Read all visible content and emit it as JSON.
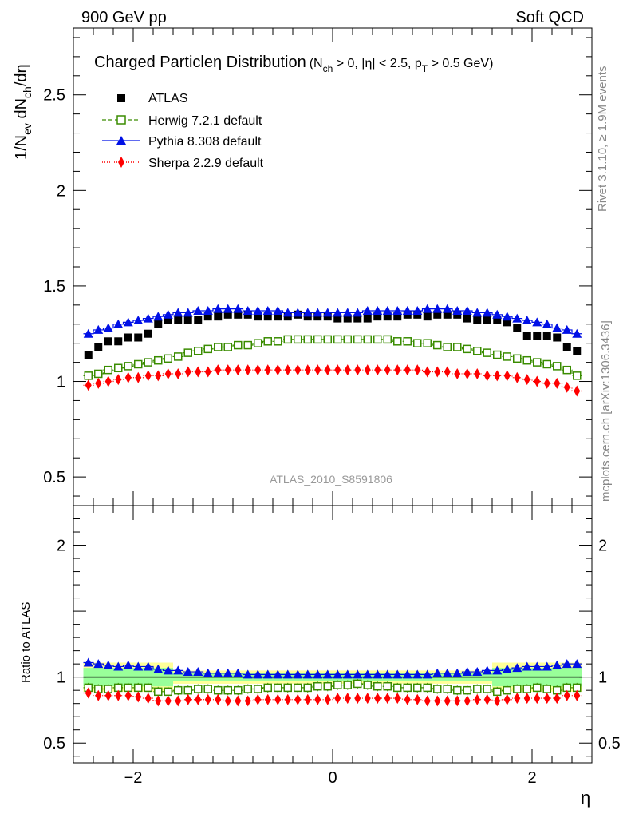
{
  "header": {
    "left": "900 GeV pp",
    "right": "Soft QCD"
  },
  "side_text": {
    "rivet": "Rivet 3.1.10, ≥ 1.9M events",
    "mcplots": "mcplots.cern.ch [arXiv:1306.3436]"
  },
  "plot_title": {
    "main": "Charged Particle",
    "eta": "η",
    "main2": " Distribution",
    "cuts": "(N",
    "cuts_sub_ch": "ch",
    "cuts_mid": " > 0, |η| < 2.5, p",
    "cuts_sub_t": "T",
    "cuts_end": " > 0.5 GeV)"
  },
  "watermark": "ATLAS_2010_S8591806",
  "y_label_main": "1/N",
  "y_label_parts": {
    "ev": "ev",
    "dn": " dN",
    "ch": "ch",
    "tail": "/dη"
  },
  "y_label_ratio": "Ratio to ATLAS",
  "x_label": "η",
  "colors": {
    "atlas": "#000000",
    "herwig": "#3a8c00",
    "pythia": "#0010e6",
    "sherpa": "#ff0000",
    "band_inner": "#99ff99",
    "band_outer": "#ffff99"
  },
  "chart_data": [
    {
      "type": "scatter",
      "xlim": [
        -2.6,
        2.6
      ],
      "ylim": [
        0.35,
        2.85
      ],
      "y_ticks": [
        {
          "value": 0.5,
          "label": "0.5"
        },
        {
          "value": 1,
          "label": "1"
        },
        {
          "value": 1.5,
          "label": "1.5"
        },
        {
          "value": 2,
          "label": "2"
        },
        {
          "value": 2.5,
          "label": "2.5"
        }
      ],
      "legend": [
        "ATLAS",
        "Herwig 7.2.1 default",
        "Pythia 8.308 default",
        "Sherpa 2.2.9 default"
      ],
      "legend_position": "top-left",
      "x": [
        -2.45,
        -2.35,
        -2.25,
        -2.15,
        -2.05,
        -1.95,
        -1.85,
        -1.75,
        -1.65,
        -1.55,
        -1.45,
        -1.35,
        -1.25,
        -1.15,
        -1.05,
        -0.95,
        -0.85,
        -0.75,
        -0.65,
        -0.55,
        -0.45,
        -0.35,
        -0.25,
        -0.15,
        -0.05,
        0.05,
        0.15,
        0.25,
        0.35,
        0.45,
        0.55,
        0.65,
        0.75,
        0.85,
        0.95,
        1.05,
        1.15,
        1.25,
        1.35,
        1.45,
        1.55,
        1.65,
        1.75,
        1.85,
        1.95,
        2.05,
        2.15,
        2.25,
        2.35,
        2.45
      ],
      "series": [
        {
          "name": "ATLAS",
          "values": [
            1.14,
            1.18,
            1.21,
            1.21,
            1.23,
            1.23,
            1.25,
            1.3,
            1.32,
            1.32,
            1.32,
            1.32,
            1.34,
            1.34,
            1.35,
            1.35,
            1.35,
            1.34,
            1.34,
            1.34,
            1.34,
            1.35,
            1.34,
            1.34,
            1.34,
            1.33,
            1.33,
            1.33,
            1.33,
            1.34,
            1.34,
            1.34,
            1.35,
            1.35,
            1.34,
            1.35,
            1.35,
            1.35,
            1.33,
            1.32,
            1.32,
            1.32,
            1.31,
            1.28,
            1.24,
            1.24,
            1.24,
            1.23,
            1.18,
            1.16
          ]
        },
        {
          "name": "Herwig 7.2.1 default",
          "values": [
            1.03,
            1.04,
            1.06,
            1.07,
            1.08,
            1.09,
            1.1,
            1.11,
            1.12,
            1.13,
            1.15,
            1.16,
            1.17,
            1.18,
            1.18,
            1.19,
            1.19,
            1.2,
            1.21,
            1.21,
            1.22,
            1.22,
            1.22,
            1.22,
            1.22,
            1.22,
            1.22,
            1.22,
            1.22,
            1.22,
            1.22,
            1.21,
            1.21,
            1.2,
            1.2,
            1.19,
            1.18,
            1.18,
            1.17,
            1.16,
            1.15,
            1.14,
            1.13,
            1.12,
            1.11,
            1.1,
            1.09,
            1.08,
            1.06,
            1.03
          ]
        },
        {
          "name": "Pythia 8.308 default",
          "values": [
            1.25,
            1.27,
            1.28,
            1.3,
            1.31,
            1.32,
            1.33,
            1.34,
            1.35,
            1.36,
            1.36,
            1.37,
            1.37,
            1.38,
            1.38,
            1.38,
            1.37,
            1.37,
            1.37,
            1.37,
            1.36,
            1.36,
            1.36,
            1.36,
            1.36,
            1.36,
            1.36,
            1.36,
            1.37,
            1.37,
            1.37,
            1.37,
            1.37,
            1.37,
            1.38,
            1.38,
            1.38,
            1.37,
            1.37,
            1.36,
            1.36,
            1.35,
            1.34,
            1.33,
            1.32,
            1.31,
            1.3,
            1.28,
            1.27,
            1.25
          ]
        },
        {
          "name": "Sherpa 2.2.9 default",
          "values": [
            0.98,
            0.99,
            1.0,
            1.01,
            1.02,
            1.02,
            1.03,
            1.03,
            1.04,
            1.04,
            1.05,
            1.05,
            1.05,
            1.06,
            1.06,
            1.06,
            1.06,
            1.06,
            1.06,
            1.06,
            1.06,
            1.06,
            1.06,
            1.06,
            1.06,
            1.06,
            1.06,
            1.06,
            1.06,
            1.06,
            1.06,
            1.06,
            1.06,
            1.06,
            1.05,
            1.05,
            1.05,
            1.04,
            1.04,
            1.04,
            1.03,
            1.03,
            1.03,
            1.02,
            1.01,
            1.0,
            0.99,
            0.99,
            0.97,
            0.95
          ]
        }
      ]
    },
    {
      "type": "scatter",
      "xlim": [
        -2.6,
        2.6
      ],
      "ylim": [
        0.35,
        2.3
      ],
      "x_ticks": [
        {
          "value": -2,
          "label": "−2"
        },
        {
          "value": 0,
          "label": "0"
        },
        {
          "value": 2,
          "label": "2"
        }
      ],
      "y_ticks": [
        {
          "value": 0.5,
          "label": "0.5"
        },
        {
          "value": 1,
          "label": "1"
        },
        {
          "value": 2,
          "label": "2"
        }
      ],
      "band_edges": [
        -2.5,
        -1.6,
        1.6,
        2.5
      ],
      "band_inner": [
        0.07,
        0.03,
        0.07
      ],
      "band_outer": [
        0.11,
        0.05,
        0.11
      ],
      "x": [
        -2.45,
        -2.35,
        -2.25,
        -2.15,
        -2.05,
        -1.95,
        -1.85,
        -1.75,
        -1.65,
        -1.55,
        -1.45,
        -1.35,
        -1.25,
        -1.15,
        -1.05,
        -0.95,
        -0.85,
        -0.75,
        -0.65,
        -0.55,
        -0.45,
        -0.35,
        -0.25,
        -0.15,
        -0.05,
        0.05,
        0.15,
        0.25,
        0.35,
        0.45,
        0.55,
        0.65,
        0.75,
        0.85,
        0.95,
        1.05,
        1.15,
        1.25,
        1.35,
        1.45,
        1.55,
        1.65,
        1.75,
        1.85,
        1.95,
        2.05,
        2.15,
        2.25,
        2.35,
        2.45
      ],
      "series": [
        {
          "name": "Herwig 7.2.1 default",
          "values": [
            0.92,
            0.91,
            0.91,
            0.92,
            0.92,
            0.92,
            0.92,
            0.89,
            0.89,
            0.9,
            0.9,
            0.91,
            0.91,
            0.9,
            0.9,
            0.9,
            0.91,
            0.91,
            0.92,
            0.92,
            0.92,
            0.92,
            0.92,
            0.93,
            0.93,
            0.94,
            0.94,
            0.95,
            0.94,
            0.93,
            0.93,
            0.92,
            0.92,
            0.92,
            0.92,
            0.91,
            0.91,
            0.9,
            0.9,
            0.91,
            0.91,
            0.89,
            0.9,
            0.91,
            0.91,
            0.92,
            0.91,
            0.9,
            0.92,
            0.92
          ]
        },
        {
          "name": "Pythia 8.308 default",
          "values": [
            1.11,
            1.1,
            1.09,
            1.08,
            1.09,
            1.08,
            1.08,
            1.06,
            1.05,
            1.05,
            1.04,
            1.04,
            1.03,
            1.03,
            1.03,
            1.03,
            1.02,
            1.02,
            1.02,
            1.02,
            1.02,
            1.02,
            1.02,
            1.02,
            1.02,
            1.02,
            1.02,
            1.02,
            1.02,
            1.02,
            1.02,
            1.02,
            1.02,
            1.02,
            1.02,
            1.03,
            1.03,
            1.03,
            1.04,
            1.04,
            1.05,
            1.05,
            1.06,
            1.07,
            1.08,
            1.08,
            1.08,
            1.09,
            1.1,
            1.1
          ]
        },
        {
          "name": "Sherpa 2.2.9 default",
          "values": [
            0.88,
            0.86,
            0.86,
            0.86,
            0.86,
            0.85,
            0.84,
            0.82,
            0.82,
            0.82,
            0.83,
            0.83,
            0.83,
            0.83,
            0.82,
            0.82,
            0.82,
            0.83,
            0.83,
            0.83,
            0.83,
            0.83,
            0.83,
            0.83,
            0.83,
            0.84,
            0.84,
            0.84,
            0.84,
            0.84,
            0.84,
            0.84,
            0.83,
            0.83,
            0.82,
            0.82,
            0.82,
            0.82,
            0.82,
            0.83,
            0.83,
            0.82,
            0.83,
            0.84,
            0.84,
            0.84,
            0.84,
            0.84,
            0.86,
            0.86
          ]
        }
      ]
    }
  ]
}
